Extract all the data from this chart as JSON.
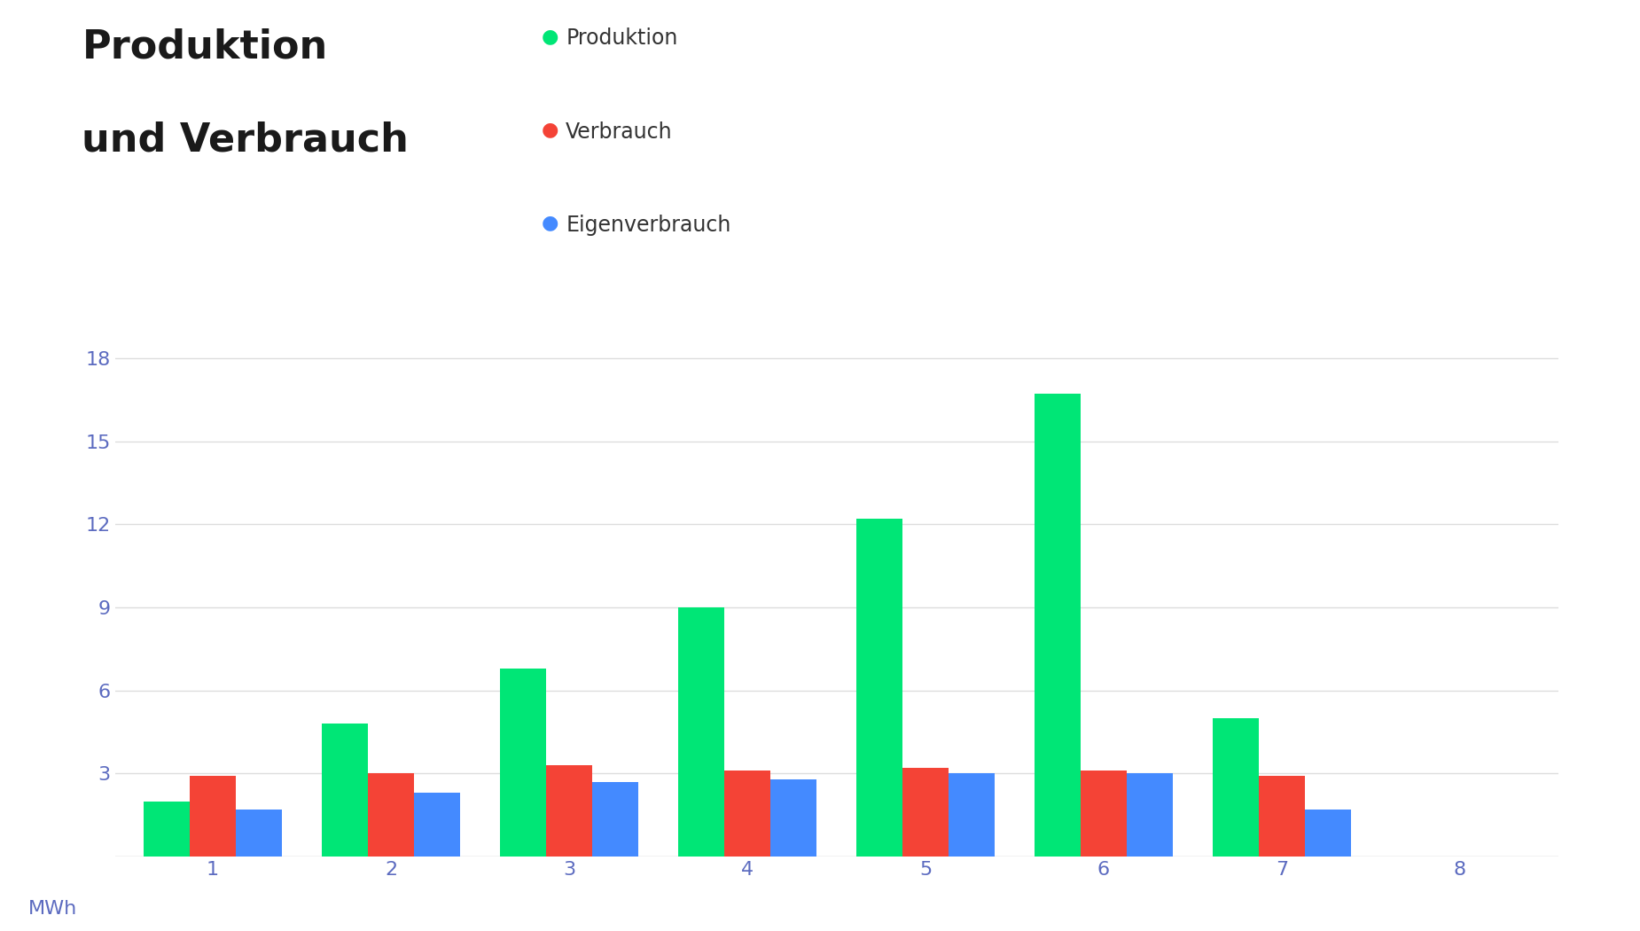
{
  "title_line1": "Produktion",
  "title_line2": "und Verbrauch",
  "ylabel": "MWh",
  "categories": [
    1,
    2,
    3,
    4,
    5,
    6,
    7,
    8
  ],
  "produktion": [
    2.0,
    4.8,
    6.8,
    9.0,
    12.2,
    16.7,
    5.0,
    0
  ],
  "verbrauch": [
    2.9,
    3.0,
    3.3,
    3.1,
    3.2,
    3.1,
    2.9,
    0
  ],
  "eigenverbrauch": [
    1.7,
    2.3,
    2.7,
    2.8,
    3.0,
    3.0,
    1.7,
    0
  ],
  "color_produktion": "#00e676",
  "color_verbrauch": "#f44336",
  "color_eigenverbrauch": "#448aff",
  "legend_produktion": "Produktion",
  "legend_verbrauch": "Verbrauch",
  "legend_eigenverbrauch": "Eigenverbrauch",
  "yticks": [
    3,
    6,
    9,
    12,
    15,
    18
  ],
  "ylim": [
    0,
    19.5
  ],
  "background_color": "#ffffff",
  "grid_color": "#dddddd",
  "tick_color": "#5c6bc0",
  "title_fontsize": 32,
  "legend_fontsize": 17,
  "axis_fontsize": 16
}
